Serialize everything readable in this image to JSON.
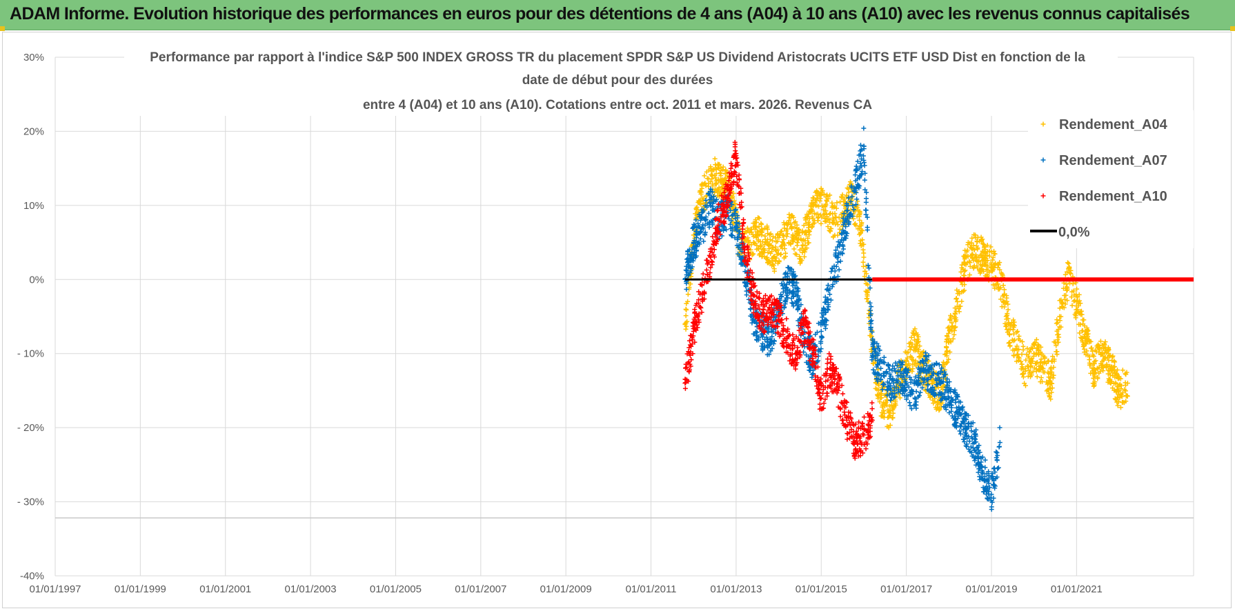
{
  "header": {
    "title": "ADAM Informe. Evolution historique des performances en euros pour des détentions de 4 ans (A04) à 10 ans (A10) avec les revenus connus capitalisés"
  },
  "colors": {
    "banner": "#7dc47d",
    "a04": "#ffc000",
    "a07": "#0070c0",
    "a10": "#ff0000",
    "zero": "#000000",
    "grid": "#d9d9d9"
  },
  "chart_data": {
    "type": "scatter",
    "title": [
      "Performance par rapport à l'indice S&P 500 INDEX GROSS TR  du placement SPDR S&P US Dividend Aristocrats UCITS ETF USD Dist en fonction de la",
      "date de début pour des durées",
      "entre 4 (A04) et 10 ans (A10). Cotations entre oct. 2011 et mars. 2026. Revenus CA"
    ],
    "xlabel": "",
    "ylabel": "",
    "xlim": [
      1997.0,
      2023.75
    ],
    "ylim": [
      -40,
      30
    ],
    "x_tick_years": [
      1997,
      1999,
      2001,
      2003,
      2005,
      2007,
      2009,
      2011,
      2013,
      2015,
      2017,
      2019,
      2021
    ],
    "x_tick_labels": [
      "01/01/1997",
      "01/01/1999",
      "01/01/2001",
      "01/01/2003",
      "01/01/2005",
      "01/01/2007",
      "01/01/2009",
      "01/01/2011",
      "01/01/2013",
      "01/01/2015",
      "01/01/2017",
      "01/01/2019",
      "01/01/2021"
    ],
    "y_ticks": [
      30,
      20,
      10,
      0,
      -10,
      -20,
      -30,
      -40
    ],
    "y_tick_labels": [
      "30%",
      "20%",
      "10%",
      "0%",
      "- 10%",
      "- 20%",
      "- 30%",
      "-40%"
    ],
    "legend_position": "top-right",
    "legend": [
      "Rendement_A04",
      "Rendement_A07",
      "Rendement_A10",
      "0,0%"
    ],
    "series": [
      {
        "name": "Rendement_A04",
        "x": [
          2011.8,
          2012.0,
          2012.2,
          2012.5,
          2012.7,
          2012.9,
          2013.1,
          2013.3,
          2013.5,
          2013.7,
          2013.9,
          2014.1,
          2014.3,
          2014.5,
          2014.7,
          2014.9,
          2015.1,
          2015.3,
          2015.5,
          2015.7,
          2015.9,
          2016.0,
          2016.1,
          2016.2,
          2016.4,
          2016.6,
          2016.8,
          2017.0,
          2017.2,
          2017.4,
          2017.6,
          2017.8,
          2018.0,
          2018.2,
          2018.4,
          2018.6,
          2018.8,
          2019.0,
          2019.2,
          2019.4,
          2019.6,
          2019.8,
          2020.0,
          2020.2,
          2020.4,
          2020.6,
          2020.8,
          2021.0,
          2021.2,
          2021.4,
          2021.6,
          2021.8,
          2022.0,
          2022.2
        ],
        "y": [
          -6,
          6,
          11,
          14,
          13,
          11,
          4,
          5,
          6,
          5,
          3,
          5,
          7,
          4,
          7,
          10,
          10,
          8,
          9,
          11,
          8,
          3,
          -3,
          -10,
          -16,
          -18,
          -14,
          -12,
          -9,
          -12,
          -14,
          -16,
          -8,
          -3,
          2,
          4,
          3,
          2,
          0,
          -6,
          -9,
          -12,
          -10,
          -12,
          -14,
          -5,
          0,
          -3,
          -8,
          -12,
          -10,
          -12,
          -15,
          -14
        ]
      },
      {
        "name": "Rendement_A07",
        "x": [
          2011.8,
          2012.0,
          2012.2,
          2012.4,
          2012.6,
          2012.8,
          2013.0,
          2013.2,
          2013.4,
          2013.6,
          2013.8,
          2014.0,
          2014.2,
          2014.4,
          2014.6,
          2014.8,
          2015.0,
          2015.2,
          2015.4,
          2015.6,
          2015.8,
          2016.0,
          2016.2,
          2016.4,
          2016.6,
          2016.8,
          2017.0,
          2017.2,
          2017.4,
          2017.6,
          2017.8,
          2018.0,
          2018.2,
          2018.4,
          2018.6,
          2018.8,
          2019.0,
          2019.2
        ],
        "y": [
          0,
          5,
          7,
          10,
          8,
          9,
          7,
          2,
          -5,
          -7,
          -8,
          -4,
          0,
          -2,
          -8,
          -11,
          -7,
          -2,
          3,
          8,
          12,
          18,
          -10,
          -12,
          -14,
          -13,
          -14,
          -16,
          -12,
          -13,
          -14,
          -16,
          -18,
          -20,
          -22,
          -26,
          -29,
          -22
        ]
      },
      {
        "name": "Rendement_A10",
        "x": [
          2011.8,
          2012.0,
          2012.2,
          2012.4,
          2012.6,
          2012.8,
          2012.9,
          2013.0,
          2013.2,
          2013.4,
          2013.6,
          2013.8,
          2014.0,
          2014.2,
          2014.4,
          2014.6,
          2014.8,
          2015.0,
          2015.2,
          2015.4,
          2015.6,
          2015.8,
          2016.0,
          2016.2
        ],
        "y": [
          -14,
          -7,
          -2,
          3,
          8,
          11,
          14,
          17,
          4,
          -2,
          -5,
          -4,
          -5,
          -8,
          -10,
          -6,
          -10,
          -16,
          -12,
          -15,
          -19,
          -22,
          -21,
          -19
        ]
      },
      {
        "name": "0,0%",
        "x": [
          2011.8,
          2023.75
        ],
        "y": [
          0,
          0
        ]
      }
    ]
  }
}
